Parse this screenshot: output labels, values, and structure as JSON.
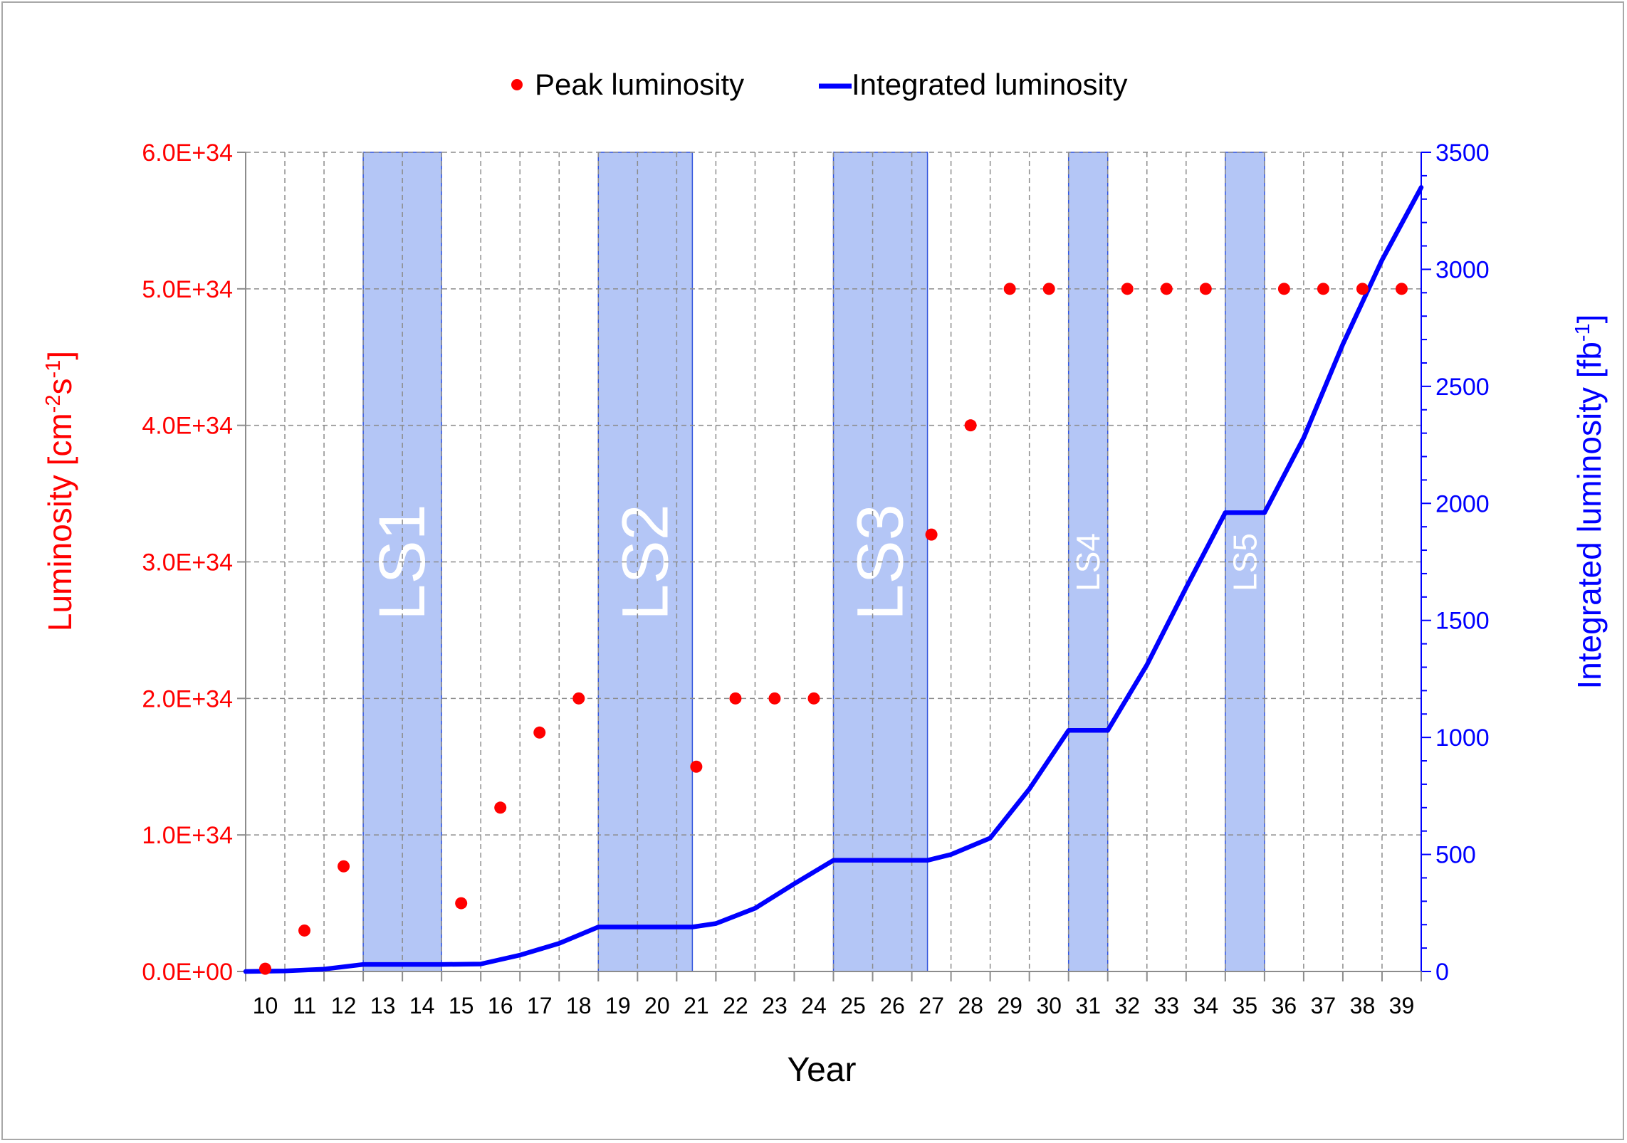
{
  "colors": {
    "peak": "#ff0000",
    "integrated": "#0000ff",
    "shutdown_fill": "#b4c6f6",
    "shutdown_edge": "#3355dd",
    "grid": "#8c8c8c",
    "axis_left": "#ff0000",
    "axis_right": "#0000ff"
  },
  "chart_data": {
    "type": "line",
    "xlabel": "Year",
    "ylabel_left": {
      "main": "Luminosity [cm",
      "sup1": "-2",
      "mid": "s",
      "sup2": "-1",
      "end": "]"
    },
    "ylabel_right": {
      "main": "Integrated luminosity [fb",
      "sup1": "-1",
      "end": "]"
    },
    "y_left_lim": [
      0,
      6e+34
    ],
    "y_left_ticks": [
      "0.0E+00",
      "1.0E+34",
      "2.0E+34",
      "3.0E+34",
      "4.0E+34",
      "5.0E+34",
      "6.0E+34"
    ],
    "y_right_lim": [
      0,
      3500
    ],
    "y_right_ticks": [
      "0",
      "500",
      "1000",
      "1500",
      "2000",
      "2500",
      "3000",
      "3500"
    ],
    "years": [
      10,
      11,
      12,
      13,
      14,
      15,
      16,
      17,
      18,
      19,
      20,
      21,
      22,
      23,
      24,
      25,
      26,
      27,
      28,
      29,
      30,
      31,
      32,
      33,
      34,
      35,
      36,
      37,
      38,
      39
    ],
    "grid": true,
    "legend_position": "top-center",
    "legend": [
      "Peak luminosity",
      "Integrated luminosity"
    ],
    "shutdowns": [
      {
        "label": "LS1",
        "from": 12.5,
        "to": 14.5
      },
      {
        "label": "LS2",
        "from": 18.5,
        "to": 20.9
      },
      {
        "label": "LS3",
        "from": 24.5,
        "to": 26.9
      },
      {
        "label": "LS4",
        "from": 30.5,
        "to": 31.5
      },
      {
        "label": "LS5",
        "from": 34.5,
        "to": 35.5
      }
    ],
    "series": [
      {
        "name": "Peak luminosity",
        "style": "markers",
        "points": [
          [
            10,
            2e+32
          ],
          [
            11,
            3e+33
          ],
          [
            12,
            7.7e+33
          ],
          [
            15,
            5e+33
          ],
          [
            16,
            1.2e+34
          ],
          [
            17,
            1.75e+34
          ],
          [
            18,
            2e+34
          ],
          [
            21,
            1.5e+34
          ],
          [
            22,
            2e+34
          ],
          [
            23,
            2e+34
          ],
          [
            24,
            2e+34
          ],
          [
            27,
            3.2e+34
          ],
          [
            28,
            4e+34
          ],
          [
            29,
            5e+34
          ],
          [
            30,
            5e+34
          ],
          [
            32,
            5e+34
          ],
          [
            33,
            5e+34
          ],
          [
            34,
            5e+34
          ],
          [
            36,
            5e+34
          ],
          [
            37,
            5e+34
          ],
          [
            38,
            5e+34
          ],
          [
            39,
            5e+34
          ]
        ]
      },
      {
        "name": "Integrated luminosity",
        "style": "line",
        "axis": "right",
        "points": [
          [
            9.5,
            0
          ],
          [
            10.5,
            2
          ],
          [
            11.5,
            10
          ],
          [
            12.5,
            30
          ],
          [
            14.5,
            30
          ],
          [
            15.5,
            32
          ],
          [
            16.5,
            70
          ],
          [
            17.5,
            120
          ],
          [
            18.5,
            190
          ],
          [
            20.9,
            190
          ],
          [
            21.5,
            205
          ],
          [
            22.5,
            270
          ],
          [
            23.5,
            375
          ],
          [
            24.5,
            475
          ],
          [
            26.9,
            475
          ],
          [
            27.5,
            500
          ],
          [
            28.5,
            570
          ],
          [
            29.5,
            780
          ],
          [
            30.5,
            1030
          ],
          [
            31.5,
            1030
          ],
          [
            32.5,
            1310
          ],
          [
            33.5,
            1640
          ],
          [
            34.5,
            1960
          ],
          [
            35.5,
            1960
          ],
          [
            36.5,
            2280
          ],
          [
            37.5,
            2680
          ],
          [
            38.5,
            3040
          ],
          [
            39.5,
            3350
          ]
        ]
      }
    ]
  }
}
